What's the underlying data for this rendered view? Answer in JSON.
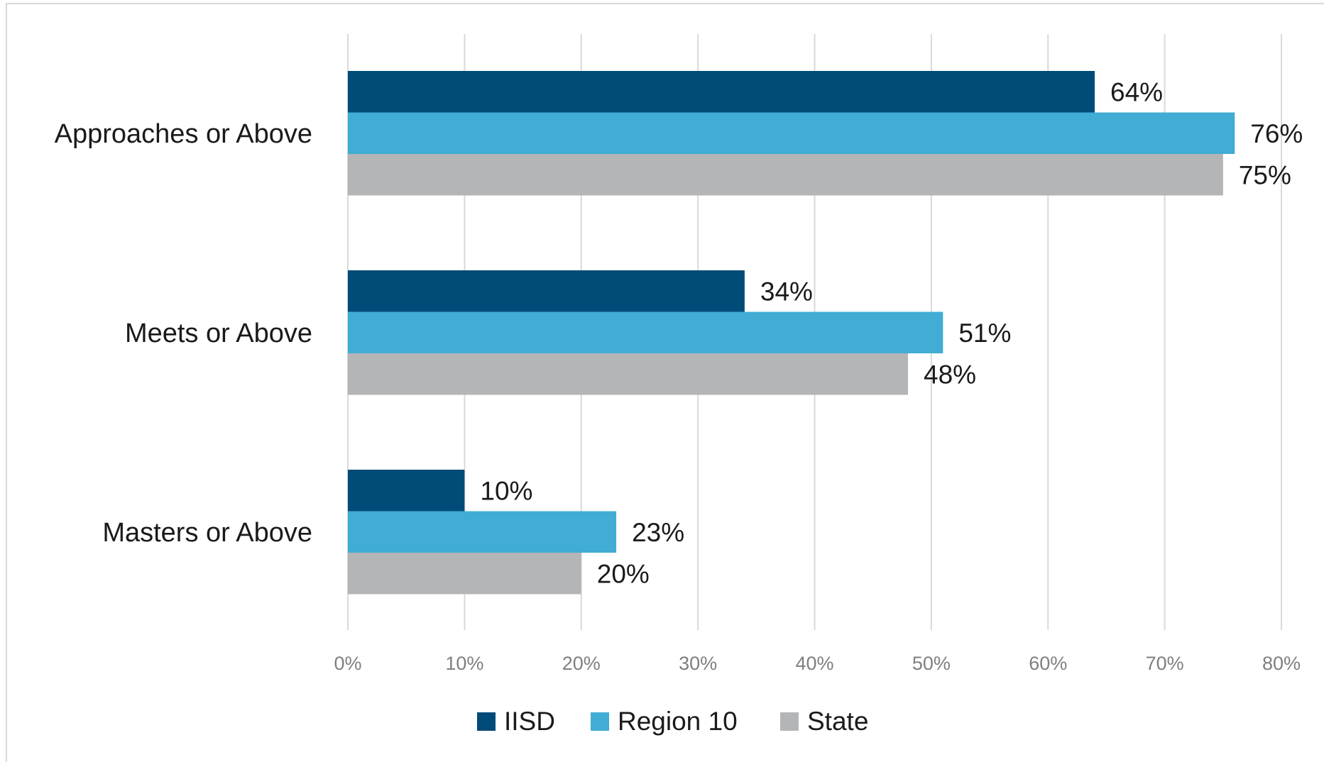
{
  "chart_data": {
    "type": "bar",
    "orientation": "horizontal",
    "categories": [
      "Approaches or Above",
      "Meets or Above",
      "Masters or Above"
    ],
    "series": [
      {
        "name": "IISD",
        "color": "#004b78",
        "values": [
          64,
          34,
          10
        ]
      },
      {
        "name": "Region 10",
        "color": "#41acd4",
        "values": [
          76,
          51,
          23
        ]
      },
      {
        "name": "State",
        "color": "#b4b5b7",
        "values": [
          75,
          48,
          20
        ]
      }
    ],
    "data_labels": [
      [
        "64%",
        "34%",
        "10%"
      ],
      [
        "76%",
        "51%",
        "23%"
      ],
      [
        "75%",
        "48%",
        "20%"
      ]
    ],
    "xlim": [
      0,
      80
    ],
    "x_ticks": [
      0,
      10,
      20,
      30,
      40,
      50,
      60,
      70,
      80
    ],
    "x_tick_labels": [
      "0%",
      "10%",
      "20%",
      "30%",
      "40%",
      "50%",
      "60%",
      "70%",
      "80%"
    ],
    "grid": "vertical",
    "legend": "bottom",
    "title": "",
    "xlabel": "",
    "ylabel": ""
  }
}
